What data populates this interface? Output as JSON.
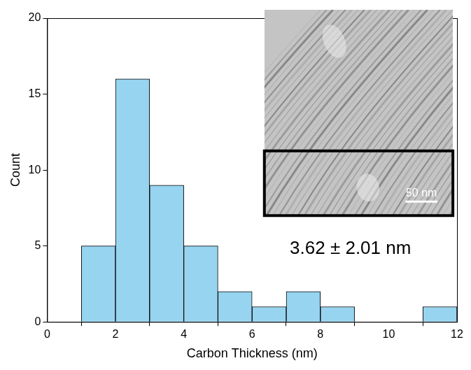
{
  "chart_data": {
    "type": "histogram",
    "x_label": "Carbon Thickness (nm)",
    "y_label": "Count",
    "bins": [
      1,
      2,
      3,
      4,
      5,
      6,
      7,
      8,
      9,
      10,
      11,
      12
    ],
    "values": [
      5,
      16,
      9,
      5,
      2,
      1,
      2,
      1,
      0,
      0,
      1
    ],
    "color": "#97d4f0",
    "xlim": [
      0,
      12
    ],
    "xticks": [
      0,
      2,
      4,
      6,
      8,
      10,
      12
    ],
    "ylim": [
      0,
      20
    ],
    "yticks": [
      0,
      5,
      10,
      15,
      20
    ],
    "grid": false,
    "annotation": "3.62 ± 2.01 nm",
    "scale_bar": "50 nm"
  }
}
